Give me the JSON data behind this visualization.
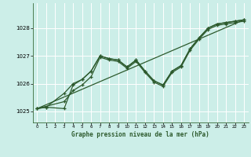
{
  "title": "Graphe pression niveau de la mer (hPa)",
  "bg_color": "#cceee8",
  "line_color": "#2d5a2d",
  "grid_color": "#ffffff",
  "xlim": [
    -0.5,
    23.5
  ],
  "ylim": [
    1024.6,
    1028.9
  ],
  "yticks": [
    1025,
    1026,
    1027,
    1028
  ],
  "xticks": [
    0,
    1,
    2,
    3,
    4,
    5,
    6,
    7,
    8,
    9,
    10,
    11,
    12,
    13,
    14,
    15,
    16,
    17,
    18,
    19,
    20,
    21,
    22,
    23
  ],
  "series1_x": [
    0,
    1,
    3,
    4,
    5,
    6,
    7,
    8,
    9,
    10,
    11,
    12,
    13,
    14,
    15,
    16,
    17,
    18,
    19,
    20,
    21,
    22,
    23
  ],
  "series1_y": [
    1025.1,
    1025.15,
    1025.1,
    1025.95,
    1026.15,
    1026.45,
    1027.0,
    1026.9,
    1026.85,
    1026.6,
    1026.85,
    1026.45,
    1026.1,
    1025.95,
    1026.45,
    1026.65,
    1027.25,
    1027.65,
    1028.0,
    1028.15,
    1028.2,
    1028.25,
    1028.3
  ],
  "series2_x": [
    0,
    3,
    4,
    5,
    6,
    7,
    8,
    9,
    10,
    11,
    12,
    13,
    14,
    15,
    16,
    17,
    18,
    19,
    20,
    21,
    22,
    23
  ],
  "series2_y": [
    1025.1,
    1025.35,
    1025.75,
    1025.95,
    1026.25,
    1026.95,
    1026.85,
    1026.8,
    1026.55,
    1026.8,
    1026.4,
    1026.05,
    1025.9,
    1026.4,
    1026.6,
    1027.2,
    1027.6,
    1027.95,
    1028.1,
    1028.15,
    1028.2,
    1028.25
  ],
  "trend_x": [
    0,
    23
  ],
  "trend_y": [
    1025.1,
    1028.3
  ],
  "series3_x": [
    0,
    1,
    3,
    4,
    5,
    6,
    7,
    8,
    9,
    10,
    11,
    12,
    13,
    14,
    15,
    16,
    17,
    18,
    19,
    20,
    21,
    22,
    23
  ],
  "series3_y": [
    1025.1,
    1025.15,
    1025.65,
    1026.0,
    1026.15,
    1026.45,
    1027.0,
    1026.9,
    1026.85,
    1026.6,
    1026.85,
    1026.45,
    1026.1,
    1025.95,
    1026.45,
    1026.65,
    1027.25,
    1027.65,
    1028.0,
    1028.15,
    1028.2,
    1028.25,
    1028.3
  ]
}
